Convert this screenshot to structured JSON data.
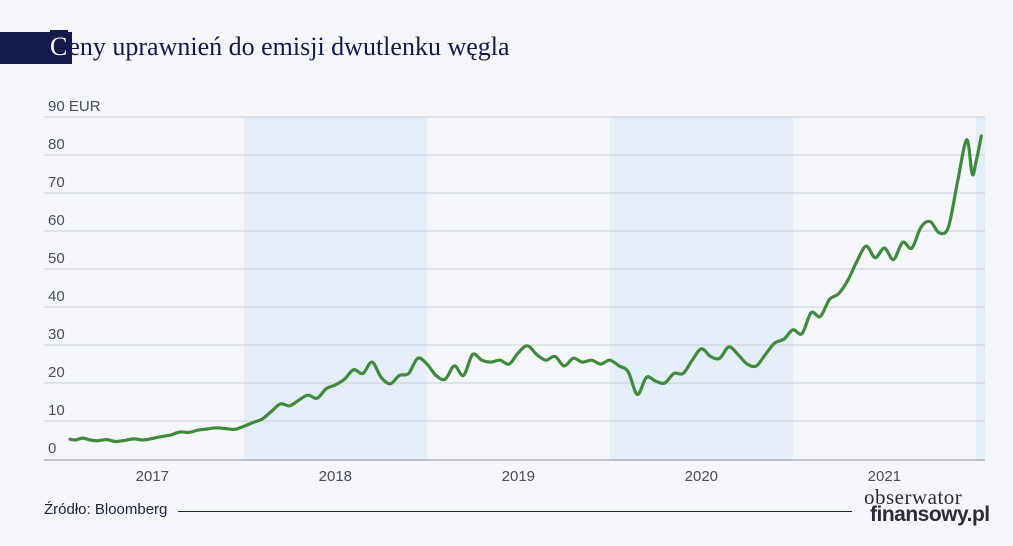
{
  "title": "Ceny uprawnień do emisji dwutlenku węgla",
  "title_first_letter": "C",
  "title_rest": "eny uprawnień do emisji dwutlenku węgla",
  "source": "Źródło: Bloomberg",
  "logo": {
    "top": "obserwator",
    "bottom": "finansowy.pl"
  },
  "colors": {
    "background": "#f4f6fa",
    "band": "#e4eef8",
    "grid": "#c9ced8",
    "line": "#3f8a3c",
    "title": "#141a4a"
  },
  "chart_data": {
    "type": "line",
    "title": "Ceny uprawnień do emisji dwutlenku węgla",
    "ylabel_unit": "EUR",
    "ylim": [
      0,
      90
    ],
    "yticks": [
      0,
      10,
      20,
      30,
      40,
      50,
      60,
      70,
      80,
      90
    ],
    "ytick_labels": [
      "0",
      "10",
      "20",
      "30",
      "40",
      "50",
      "60",
      "70",
      "80",
      "90 EUR"
    ],
    "xlim": [
      2016.55,
      2021.55
    ],
    "xticks": [
      {
        "label": "2017",
        "value": 2017.0
      },
      {
        "label": "2018",
        "value": 2018.0
      },
      {
        "label": "2019",
        "value": 2019.0
      },
      {
        "label": "2020",
        "value": 2020.0
      },
      {
        "label": "2021",
        "value": 2021.0
      }
    ],
    "shaded_years": [
      [
        2017.5,
        2018.5
      ],
      [
        2019.5,
        2020.5
      ],
      [
        2021.5,
        2021.55
      ]
    ],
    "grid": true,
    "series": [
      {
        "x": [
          2016.55,
          2016.58,
          2016.62,
          2016.66,
          2016.7,
          2016.75,
          2016.8,
          2016.85,
          2016.9,
          2016.95,
          2017.0,
          2017.05,
          2017.1,
          2017.15,
          2017.2,
          2017.25,
          2017.3,
          2017.35,
          2017.4,
          2017.45,
          2017.5,
          2017.55,
          2017.6,
          2017.65,
          2017.7,
          2017.75,
          2017.8,
          2017.85,
          2017.9,
          2017.95,
          2018.0,
          2018.05,
          2018.1,
          2018.15,
          2018.2,
          2018.25,
          2018.3,
          2018.35,
          2018.4,
          2018.45,
          2018.5,
          2018.55,
          2018.6,
          2018.65,
          2018.7,
          2018.75,
          2018.8,
          2018.85,
          2018.9,
          2018.95,
          2019.0,
          2019.05,
          2019.1,
          2019.15,
          2019.2,
          2019.25,
          2019.3,
          2019.35,
          2019.4,
          2019.45,
          2019.5,
          2019.55,
          2019.6,
          2019.65,
          2019.7,
          2019.75,
          2019.8,
          2019.85,
          2019.9,
          2019.95,
          2020.0,
          2020.05,
          2020.1,
          2020.15,
          2020.2,
          2020.25,
          2020.3,
          2020.35,
          2020.4,
          2020.45,
          2020.5,
          2020.55,
          2020.6,
          2020.65,
          2020.7,
          2020.75,
          2020.8,
          2020.85,
          2020.9,
          2020.95,
          2021.0,
          2021.05,
          2021.1,
          2021.15,
          2021.2,
          2021.25,
          2021.3,
          2021.35,
          2021.4,
          2021.45,
          2021.48,
          2021.5,
          2021.53
        ],
        "y": [
          5.2,
          5.0,
          5.5,
          5.0,
          4.8,
          5.1,
          4.6,
          4.9,
          5.3,
          5.0,
          5.4,
          5.9,
          6.3,
          7.1,
          7.0,
          7.6,
          7.9,
          8.2,
          8.0,
          7.8,
          8.6,
          9.6,
          10.5,
          12.5,
          14.5,
          14.0,
          15.5,
          16.8,
          16.0,
          18.5,
          19.5,
          21.0,
          23.5,
          22.5,
          25.5,
          21.5,
          19.8,
          22.0,
          22.5,
          26.5,
          25.0,
          22.0,
          21.0,
          24.5,
          22.0,
          27.5,
          26.0,
          25.5,
          26.0,
          25.0,
          28.0,
          29.8,
          27.5,
          26.0,
          27.0,
          24.5,
          26.5,
          25.5,
          26.0,
          25.0,
          26.0,
          24.5,
          23.0,
          17.0,
          21.5,
          20.5,
          20.0,
          22.5,
          22.5,
          26.0,
          29.0,
          27.0,
          26.5,
          29.5,
          27.5,
          25.0,
          24.5,
          27.5,
          30.5,
          31.5,
          34.0,
          33.0,
          38.5,
          37.5,
          42.0,
          43.5,
          47.0,
          52.0,
          56.0,
          53.0,
          55.5,
          52.5,
          57.0,
          55.5,
          61.0,
          62.5,
          59.5,
          61.0,
          73.0,
          84.0,
          75.0,
          78.0,
          85.0
        ]
      }
    ]
  }
}
